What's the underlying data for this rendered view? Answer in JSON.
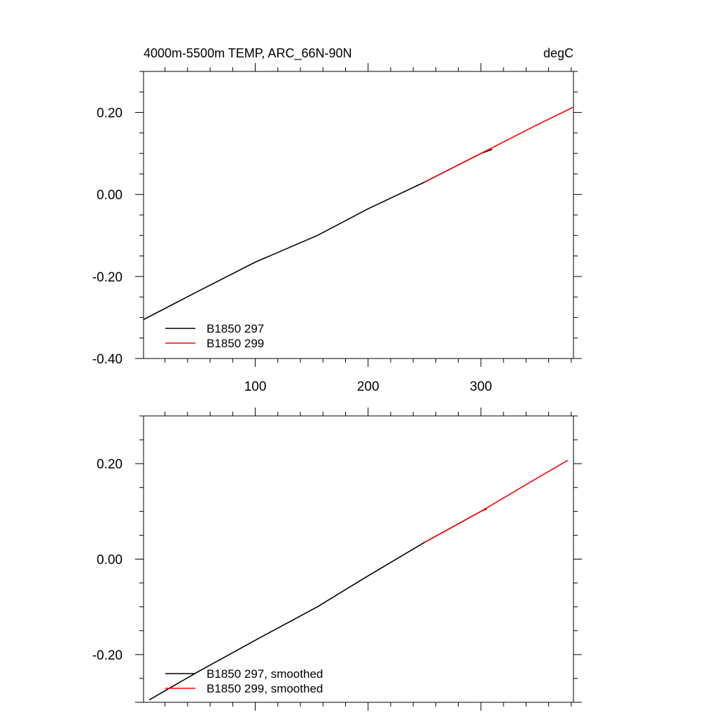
{
  "chart_data": [
    {
      "type": "line",
      "title": "4000m-5500m TEMP, ARC_66N-90N",
      "units": "degC",
      "xlim": [
        1,
        382
      ],
      "ylim": [
        -0.4,
        0.3
      ],
      "xticks": [
        100,
        200,
        300
      ],
      "xtick_labels": [
        "100",
        "200",
        "300"
      ],
      "yticks": [
        -0.4,
        -0.2,
        0.0,
        0.2
      ],
      "ytick_labels": [
        "-0.40",
        "-0.20",
        "0.00",
        "0.20"
      ],
      "grid": false,
      "legend_position": "bottom-left",
      "series": [
        {
          "name": "B1850 297",
          "color": "#000000",
          "x": [
            1,
            50,
            100,
            155,
            200,
            250,
            300,
            310
          ],
          "y": [
            -0.305,
            -0.235,
            -0.165,
            -0.1,
            -0.035,
            0.03,
            0.1,
            0.11
          ]
        },
        {
          "name": "B1850 299",
          "color": "#ff0000",
          "x": [
            250,
            300,
            350,
            382
          ],
          "y": [
            0.03,
            0.1,
            0.17,
            0.213
          ]
        }
      ]
    },
    {
      "type": "line",
      "xlim": [
        1,
        382
      ],
      "ylim": [
        -0.3,
        0.3
      ],
      "xticks": [
        100,
        200,
        300
      ],
      "yticks": [
        -0.2,
        0.0,
        0.2
      ],
      "ytick_labels": [
        "-0.20",
        "0.00",
        "0.20"
      ],
      "grid": false,
      "legend_position": "bottom-left",
      "series": [
        {
          "name": "B1850 297, smoothed",
          "color": "#000000",
          "x": [
            6,
            50,
            100,
            155,
            200,
            250,
            300,
            305
          ],
          "y": [
            -0.295,
            -0.235,
            -0.17,
            -0.1,
            -0.035,
            0.035,
            0.1,
            0.105
          ]
        },
        {
          "name": "B1850 299, smoothed",
          "color": "#ff0000",
          "x": [
            250,
            300,
            350,
            377
          ],
          "y": [
            0.035,
            0.1,
            0.17,
            0.207
          ]
        }
      ]
    }
  ]
}
